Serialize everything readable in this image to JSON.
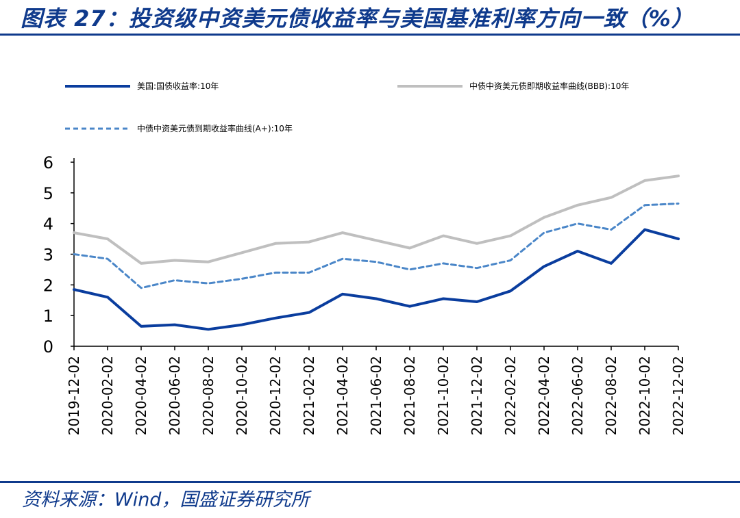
{
  "header": {
    "title": "图表 27：投资级中资美元债收益率与美国基准利率方向一致（%）"
  },
  "footer": {
    "source": "资料来源：Wind，国盛证券研究所"
  },
  "colors": {
    "brand": "#0f3a8c",
    "series_treasury": "#0a3d9e",
    "series_bbb": "#bfbfbf",
    "series_a_plus": "#4a86c8"
  },
  "chart_data": {
    "type": "line",
    "title": "投资级中资美元债收益率与美国基准利率方向一致（%）",
    "xlabel": "",
    "ylabel": "%",
    "ylim": [
      0,
      6
    ],
    "yticks": [
      "0",
      "1",
      "2",
      "3",
      "4",
      "5",
      "6"
    ],
    "x": [
      "2019-12-02",
      "2020-02-02",
      "2020-04-02",
      "2020-06-02",
      "2020-08-02",
      "2020-10-02",
      "2020-12-02",
      "2021-02-02",
      "2021-04-02",
      "2021-06-02",
      "2021-08-02",
      "2021-10-02",
      "2021-12-02",
      "2022-02-02",
      "2022-04-02",
      "2022-06-02",
      "2022-08-02",
      "2022-10-02",
      "2022-12-02"
    ],
    "legend": [
      {
        "name": "美国:国债收益率:10年",
        "style": "solid"
      },
      {
        "name": "中债中资美元债即期收益率曲线(BBB):10年",
        "style": "solid"
      },
      {
        "name": "中债中资美元债到期收益率曲线(A+):10年",
        "style": "dashed"
      }
    ],
    "series": [
      {
        "name": "美国:国债收益率:10年",
        "values": [
          1.85,
          1.6,
          0.65,
          0.7,
          0.55,
          0.7,
          0.92,
          1.1,
          1.7,
          1.55,
          1.3,
          1.55,
          1.45,
          1.8,
          2.6,
          3.1,
          2.7,
          3.8,
          3.5
        ]
      },
      {
        "name": "中债中资美元债即期收益率曲线(BBB):10年",
        "values": [
          3.7,
          3.5,
          2.7,
          2.8,
          2.75,
          3.05,
          3.35,
          3.4,
          3.7,
          3.45,
          3.2,
          3.6,
          3.35,
          3.6,
          4.2,
          4.6,
          4.85,
          5.4,
          5.55
        ]
      },
      {
        "name": "中债中资美元债到期收益率曲线(A+):10年",
        "values": [
          3.0,
          2.85,
          1.9,
          2.15,
          2.05,
          2.2,
          2.4,
          2.4,
          2.85,
          2.75,
          2.5,
          2.7,
          2.55,
          2.8,
          3.7,
          4.0,
          3.8,
          4.6,
          4.65
        ]
      }
    ]
  }
}
